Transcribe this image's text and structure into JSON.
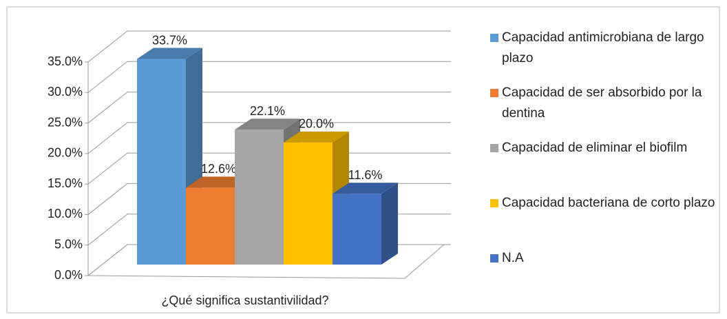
{
  "chart_data": {
    "type": "bar",
    "categories": [
      "¿Qué significa sustantivilidad?"
    ],
    "series": [
      {
        "name": "Capacidad antimicrobiana de largo plazo",
        "color": "#5b9bd5",
        "values": [
          33.7
        ],
        "value_labels": [
          "33.7%"
        ]
      },
      {
        "name": "Capacidad de ser absorbido por la dentina",
        "color": "#ed7d31",
        "values": [
          12.6
        ],
        "value_labels": [
          "12.6%"
        ]
      },
      {
        "name": "Capacidad de eliminar el biofilm",
        "color": "#a5a5a5",
        "values": [
          22.1
        ],
        "value_labels": [
          "22.1%"
        ]
      },
      {
        "name": "Capacidad bacteriana de corto plazo",
        "color": "#ffc000",
        "values": [
          20.0
        ],
        "value_labels": [
          "20.0%"
        ]
      },
      {
        "name": "N.A",
        "color": "#4472c4",
        "values": [
          11.6
        ],
        "value_labels": [
          "11.6%"
        ]
      }
    ],
    "ylim": [
      0,
      35
    ],
    "yticks": [
      {
        "value": 0,
        "label": "0.0%"
      },
      {
        "value": 5,
        "label": "5.0%"
      },
      {
        "value": 10,
        "label": "10.0%"
      },
      {
        "value": 15,
        "label": "15.0%"
      },
      {
        "value": 20,
        "label": "20.0%"
      },
      {
        "value": 25,
        "label": "25.0%"
      },
      {
        "value": 30,
        "label": "30.0%"
      },
      {
        "value": 35,
        "label": "35.0%"
      }
    ],
    "grid": true,
    "legend": "right"
  }
}
